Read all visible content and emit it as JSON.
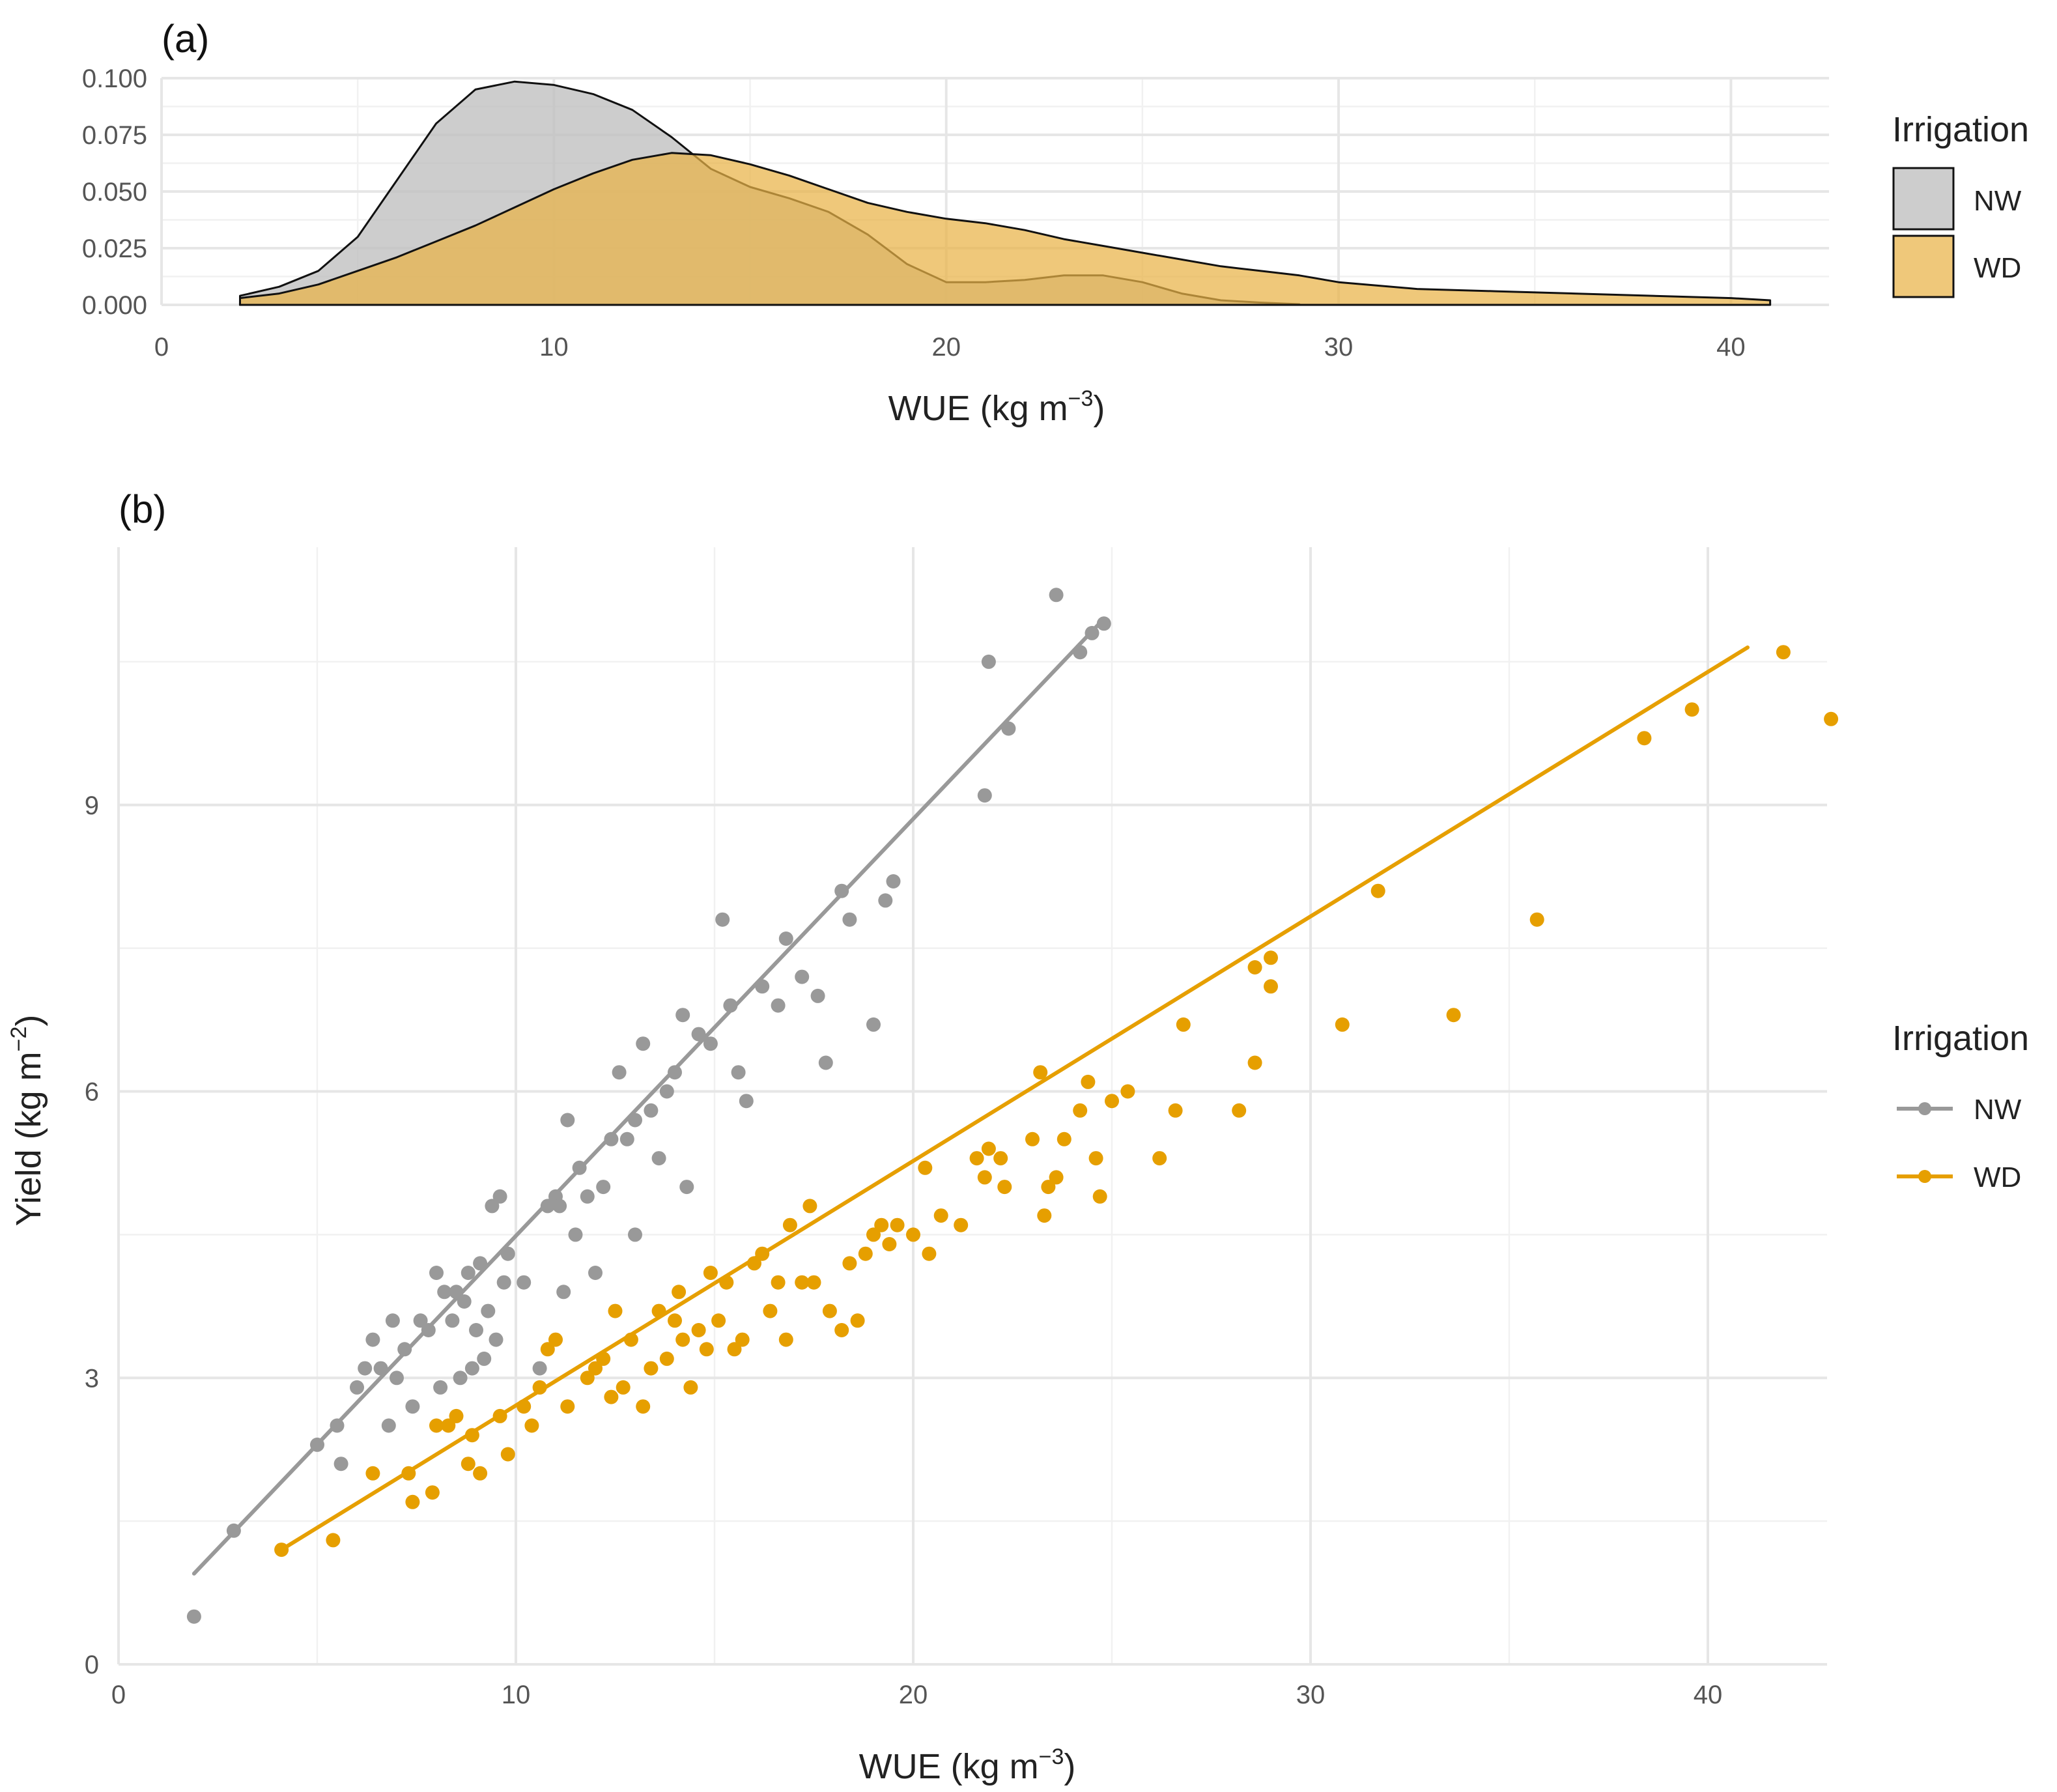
{
  "chart_data": [
    {
      "id": "a",
      "type": "area",
      "subtype": "density",
      "panel_label": "(a)",
      "xlabel_main": "WUE (kg m",
      "xlabel_sup": "−3",
      "xlabel_close": ")",
      "ylabel": "",
      "xlim": [
        0,
        42.5
      ],
      "ylim": [
        0,
        0.1
      ],
      "x_ticks": [
        0,
        10,
        20,
        30,
        40
      ],
      "x_tick_labels": [
        "0",
        "10",
        "20",
        "30",
        "40"
      ],
      "y_ticks": [
        0,
        0.025,
        0.05,
        0.075,
        0.1
      ],
      "y_tick_labels": [
        "0.000",
        "0.025",
        "0.050",
        "0.075",
        "0.100"
      ],
      "grid": true,
      "legend": {
        "title": "Irrigation",
        "placement": "right",
        "entries": [
          "NW",
          "WD"
        ]
      },
      "series": [
        {
          "name": "NW",
          "color": "#bfbfbf",
          "x": [
            2,
            3,
            4,
            5,
            6,
            7,
            8,
            9,
            10,
            11,
            12,
            13,
            14,
            15,
            16,
            17,
            18,
            19,
            20,
            21,
            22,
            23,
            24,
            25,
            26,
            27,
            28,
            29
          ],
          "y": [
            0.004,
            0.008,
            0.015,
            0.03,
            0.055,
            0.08,
            0.095,
            0.0985,
            0.097,
            0.093,
            0.086,
            0.074,
            0.06,
            0.052,
            0.047,
            0.041,
            0.031,
            0.018,
            0.01,
            0.01,
            0.011,
            0.013,
            0.013,
            0.01,
            0.005,
            0.002,
            0.001,
            0.0003
          ]
        },
        {
          "name": "WD",
          "color": "#e9b347",
          "x": [
            2,
            3,
            4,
            5,
            6,
            7,
            8,
            9,
            10,
            11,
            12,
            13,
            14,
            15,
            16,
            17,
            18,
            19,
            20,
            21,
            22,
            23,
            24,
            25,
            26,
            27,
            28,
            29,
            30,
            32,
            34,
            36,
            38,
            40,
            41
          ],
          "y": [
            0.003,
            0.005,
            0.009,
            0.015,
            0.021,
            0.028,
            0.035,
            0.043,
            0.051,
            0.058,
            0.064,
            0.067,
            0.066,
            0.062,
            0.057,
            0.051,
            0.045,
            0.041,
            0.038,
            0.036,
            0.033,
            0.029,
            0.026,
            0.023,
            0.02,
            0.017,
            0.015,
            0.013,
            0.01,
            0.007,
            0.006,
            0.005,
            0.004,
            0.003,
            0.002
          ]
        }
      ]
    },
    {
      "id": "b",
      "type": "scatter",
      "panel_label": "(b)",
      "xlabel_main": "WUE (kg m",
      "xlabel_sup": "−3",
      "xlabel_close": ")",
      "ylabel_main": "Yield (kg m",
      "ylabel_sup": "−2",
      "ylabel_close": ")",
      "xlim": [
        0,
        43
      ],
      "ylim": [
        0,
        11.7
      ],
      "x_ticks": [
        0,
        10,
        20,
        30,
        40
      ],
      "x_tick_labels": [
        "0",
        "10",
        "20",
        "30",
        "40"
      ],
      "y_ticks": [
        0,
        3,
        6,
        9
      ],
      "y_tick_labels": [
        "0",
        "3",
        "6",
        "9"
      ],
      "grid": true,
      "legend": {
        "title": "Irrigation",
        "placement": "right",
        "entries": [
          "NW",
          "WD"
        ]
      },
      "series": [
        {
          "name": "NW",
          "color": "#999999",
          "trend": {
            "x": [
              1.9,
              24.8
            ],
            "y": [
              0.95,
              10.95
            ]
          },
          "points": [
            [
              1.9,
              0.5
            ],
            [
              2.9,
              1.4
            ],
            [
              5,
              2.3
            ],
            [
              5.5,
              2.5
            ],
            [
              5.6,
              2.1
            ],
            [
              6,
              2.9
            ],
            [
              6.2,
              3.1
            ],
            [
              6.4,
              3.4
            ],
            [
              6.6,
              3.1
            ],
            [
              6.8,
              2.5
            ],
            [
              6.9,
              3.6
            ],
            [
              7,
              3.0
            ],
            [
              7.2,
              3.3
            ],
            [
              7.4,
              2.7
            ],
            [
              7.6,
              3.6
            ],
            [
              7.8,
              3.5
            ],
            [
              8,
              4.1
            ],
            [
              8.1,
              2.9
            ],
            [
              8.2,
              3.9
            ],
            [
              8.4,
              3.6
            ],
            [
              8.5,
              3.9
            ],
            [
              8.6,
              3.0
            ],
            [
              8.7,
              3.8
            ],
            [
              8.8,
              4.1
            ],
            [
              8.9,
              3.1
            ],
            [
              9,
              3.5
            ],
            [
              9.1,
              4.2
            ],
            [
              9.2,
              3.2
            ],
            [
              9.3,
              3.7
            ],
            [
              9.4,
              4.8
            ],
            [
              9.5,
              3.4
            ],
            [
              9.6,
              4.9
            ],
            [
              9.7,
              4.0
            ],
            [
              9.8,
              4.3
            ],
            [
              10.2,
              4.0
            ],
            [
              10.6,
              3.1
            ],
            [
              10.8,
              4.8
            ],
            [
              11,
              4.9
            ],
            [
              11.1,
              4.8
            ],
            [
              11.2,
              3.9
            ],
            [
              11.3,
              5.7
            ],
            [
              11.5,
              4.5
            ],
            [
              11.6,
              5.2
            ],
            [
              11.8,
              4.9
            ],
            [
              12,
              4.1
            ],
            [
              12.2,
              5.0
            ],
            [
              12.4,
              5.5
            ],
            [
              12.6,
              6.2
            ],
            [
              12.8,
              5.5
            ],
            [
              13,
              4.5
            ],
            [
              13,
              5.7
            ],
            [
              13.2,
              6.5
            ],
            [
              13.4,
              5.8
            ],
            [
              13.6,
              5.3
            ],
            [
              13.8,
              6.0
            ],
            [
              14,
              6.2
            ],
            [
              14.3,
              5.0
            ],
            [
              14.2,
              6.8
            ],
            [
              14.6,
              6.6
            ],
            [
              14.9,
              6.5
            ],
            [
              15.2,
              7.8
            ],
            [
              15.4,
              6.9
            ],
            [
              15.6,
              6.2
            ],
            [
              15.8,
              5.9
            ],
            [
              16.2,
              7.1
            ],
            [
              16.6,
              6.9
            ],
            [
              16.8,
              7.6
            ],
            [
              17.2,
              7.2
            ],
            [
              17.6,
              7.0
            ],
            [
              17.8,
              6.3
            ],
            [
              18.2,
              8.1
            ],
            [
              18.4,
              7.8
            ],
            [
              19,
              6.7
            ],
            [
              19.3,
              8.0
            ],
            [
              19.5,
              8.2
            ],
            [
              21.8,
              9.1
            ],
            [
              21.9,
              10.5
            ],
            [
              22.4,
              9.8
            ],
            [
              23.6,
              11.2
            ],
            [
              24.2,
              10.6
            ],
            [
              24.5,
              10.8
            ],
            [
              24.8,
              10.9
            ]
          ]
        },
        {
          "name": "WD",
          "color": "#e69f00",
          "trend": {
            "x": [
              4.1,
              41
            ],
            "y": [
              1.2,
              10.65
            ]
          },
          "points": [
            [
              4.1,
              1.2
            ],
            [
              5.4,
              1.3
            ],
            [
              6.4,
              2.0
            ],
            [
              7.3,
              2.0
            ],
            [
              7.4,
              1.7
            ],
            [
              7.9,
              1.8
            ],
            [
              8,
              2.5
            ],
            [
              8.3,
              2.5
            ],
            [
              8.5,
              2.6
            ],
            [
              8.8,
              2.1
            ],
            [
              8.9,
              2.4
            ],
            [
              9.1,
              2.0
            ],
            [
              9.6,
              2.6
            ],
            [
              9.8,
              2.2
            ],
            [
              10.2,
              2.7
            ],
            [
              10.4,
              2.5
            ],
            [
              10.6,
              2.9
            ],
            [
              10.8,
              3.3
            ],
            [
              11,
              3.4
            ],
            [
              11.3,
              2.7
            ],
            [
              11.8,
              3.0
            ],
            [
              12,
              3.1
            ],
            [
              12.2,
              3.2
            ],
            [
              12.4,
              2.8
            ],
            [
              12.5,
              3.7
            ],
            [
              12.7,
              2.9
            ],
            [
              12.9,
              3.4
            ],
            [
              13.2,
              2.7
            ],
            [
              13.4,
              3.1
            ],
            [
              13.6,
              3.7
            ],
            [
              13.8,
              3.2
            ],
            [
              14,
              3.6
            ],
            [
              14.1,
              3.9
            ],
            [
              14.2,
              3.4
            ],
            [
              14.4,
              2.9
            ],
            [
              14.6,
              3.5
            ],
            [
              14.8,
              3.3
            ],
            [
              14.9,
              4.1
            ],
            [
              15.1,
              3.6
            ],
            [
              15.3,
              4.0
            ],
            [
              15.5,
              3.3
            ],
            [
              15.7,
              3.4
            ],
            [
              16.0,
              4.2
            ],
            [
              16.2,
              4.3
            ],
            [
              16.4,
              3.7
            ],
            [
              16.6,
              4.0
            ],
            [
              16.8,
              3.4
            ],
            [
              16.9,
              4.6
            ],
            [
              17.2,
              4.0
            ],
            [
              17.4,
              4.8
            ],
            [
              17.5,
              4.0
            ],
            [
              17.9,
              3.7
            ],
            [
              18.2,
              3.5
            ],
            [
              18.4,
              4.2
            ],
            [
              18.6,
              3.6
            ],
            [
              18.8,
              4.3
            ],
            [
              19,
              4.5
            ],
            [
              19.2,
              4.6
            ],
            [
              19.4,
              4.4
            ],
            [
              19.6,
              4.6
            ],
            [
              20,
              4.5
            ],
            [
              20.3,
              5.2
            ],
            [
              20.4,
              4.3
            ],
            [
              20.7,
              4.7
            ],
            [
              21.2,
              4.6
            ],
            [
              21.6,
              5.3
            ],
            [
              21.8,
              5.1
            ],
            [
              21.9,
              5.4
            ],
            [
              22.2,
              5.3
            ],
            [
              22.3,
              5.0
            ],
            [
              23,
              5.5
            ],
            [
              23.2,
              6.2
            ],
            [
              23.3,
              4.7
            ],
            [
              23.4,
              5.0
            ],
            [
              23.6,
              5.1
            ],
            [
              23.8,
              5.5
            ],
            [
              24.2,
              5.8
            ],
            [
              24.4,
              6.1
            ],
            [
              24.6,
              5.3
            ],
            [
              24.7,
              4.9
            ],
            [
              25.0,
              5.9
            ],
            [
              25.4,
              6.0
            ],
            [
              26.2,
              5.3
            ],
            [
              26.6,
              5.8
            ],
            [
              26.8,
              6.7
            ],
            [
              28.2,
              5.8
            ],
            [
              28.6,
              6.3
            ],
            [
              28.6,
              7.3
            ],
            [
              29.0,
              7.1
            ],
            [
              29.0,
              7.4
            ],
            [
              30.8,
              6.7
            ],
            [
              31.7,
              8.1
            ],
            [
              33.6,
              6.8
            ],
            [
              35.7,
              7.8
            ],
            [
              38.4,
              9.7
            ],
            [
              39.6,
              10.0
            ],
            [
              41.9,
              10.6
            ],
            [
              43.1,
              9.9
            ]
          ]
        }
      ]
    }
  ]
}
